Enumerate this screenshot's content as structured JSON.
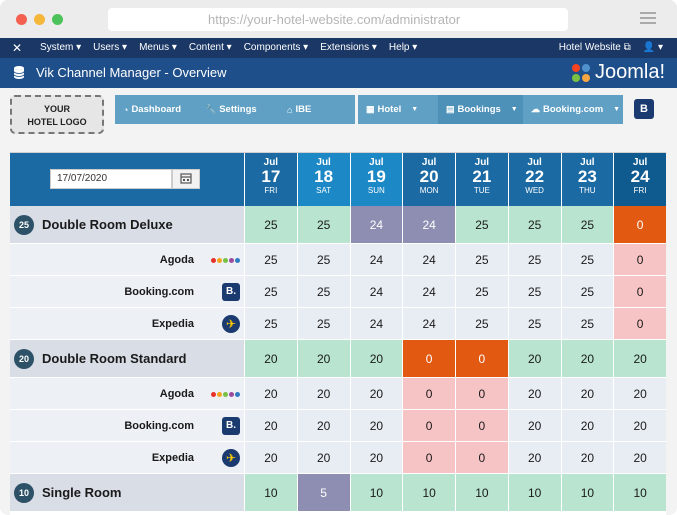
{
  "browser": {
    "url": "https://your-hotel-website.com/administrator"
  },
  "admin_bar": {
    "menu": [
      "System ▾",
      "Users ▾",
      "Menus ▾",
      "Content ▾",
      "Components ▾",
      "Extensions ▾",
      "Help ▾"
    ],
    "site_link": "Hotel Website ⧉",
    "user": "👤 ▾"
  },
  "header": {
    "title": "Vik Channel Manager - Overview",
    "brand": "Joomla!"
  },
  "toolbar": {
    "logo_text_1": "YOUR",
    "logo_text_2": "HOTEL LOGO",
    "nav_left": [
      "Dashboard",
      "Settings",
      "IBE"
    ],
    "nav_right": [
      "Hotel",
      "Bookings",
      "Booking.com"
    ],
    "b_button": "B"
  },
  "grid": {
    "date_value": "17/07/2020",
    "days": [
      {
        "m": "Jul",
        "d": "17",
        "w": "FRI"
      },
      {
        "m": "Jul",
        "d": "18",
        "w": "SAT"
      },
      {
        "m": "Jul",
        "d": "19",
        "w": "SUN"
      },
      {
        "m": "Jul",
        "d": "20",
        "w": "MON"
      },
      {
        "m": "Jul",
        "d": "21",
        "w": "TUE"
      },
      {
        "m": "Jul",
        "d": "22",
        "w": "WED"
      },
      {
        "m": "Jul",
        "d": "23",
        "w": "THU"
      },
      {
        "m": "Jul",
        "d": "24",
        "w": "FRI"
      }
    ],
    "rows": [
      {
        "type": "room",
        "num": "25",
        "name": "Double Room Deluxe",
        "values": [
          "25",
          "25",
          "24",
          "24",
          "25",
          "25",
          "25",
          "0"
        ],
        "status": [
          "green",
          "green",
          "grey",
          "grey",
          "green",
          "green",
          "green",
          "orange"
        ]
      },
      {
        "type": "channel",
        "name": "Agoda",
        "icon": "agoda",
        "values": [
          "25",
          "25",
          "24",
          "24",
          "25",
          "25",
          "25",
          "0"
        ],
        "status": [
          "plain",
          "plain",
          "plain",
          "plain",
          "plain",
          "plain",
          "plain",
          "pink"
        ]
      },
      {
        "type": "channel",
        "name": "Booking.com",
        "icon": "booking",
        "values": [
          "25",
          "25",
          "24",
          "24",
          "25",
          "25",
          "25",
          "0"
        ],
        "status": [
          "plain",
          "plain",
          "plain",
          "plain",
          "plain",
          "plain",
          "plain",
          "pink"
        ]
      },
      {
        "type": "channel",
        "name": "Expedia",
        "icon": "expedia",
        "values": [
          "25",
          "25",
          "24",
          "24",
          "25",
          "25",
          "25",
          "0"
        ],
        "status": [
          "plain",
          "plain",
          "plain",
          "plain",
          "plain",
          "plain",
          "plain",
          "pink"
        ]
      },
      {
        "type": "room",
        "num": "20",
        "name": "Double Room Standard",
        "values": [
          "20",
          "20",
          "20",
          "0",
          "0",
          "20",
          "20",
          "20"
        ],
        "status": [
          "green",
          "green",
          "green",
          "orange",
          "orange",
          "green",
          "green",
          "green"
        ]
      },
      {
        "type": "channel",
        "name": "Agoda",
        "icon": "agoda",
        "values": [
          "20",
          "20",
          "20",
          "0",
          "0",
          "20",
          "20",
          "20"
        ],
        "status": [
          "plain",
          "plain",
          "plain",
          "pink",
          "pink",
          "plain",
          "plain",
          "plain"
        ]
      },
      {
        "type": "channel",
        "name": "Booking.com",
        "icon": "booking",
        "values": [
          "20",
          "20",
          "20",
          "0",
          "0",
          "20",
          "20",
          "20"
        ],
        "status": [
          "plain",
          "plain",
          "plain",
          "pink",
          "pink",
          "plain",
          "plain",
          "plain"
        ]
      },
      {
        "type": "channel",
        "name": "Expedia",
        "icon": "expedia",
        "values": [
          "20",
          "20",
          "20",
          "0",
          "0",
          "20",
          "20",
          "20"
        ],
        "status": [
          "plain",
          "plain",
          "plain",
          "pink",
          "pink",
          "plain",
          "plain",
          "plain"
        ]
      },
      {
        "type": "room",
        "num": "10",
        "name": "Single Room",
        "values": [
          "10",
          "5",
          "10",
          "10",
          "10",
          "10",
          "10",
          "10"
        ],
        "status": [
          "green",
          "grey",
          "green",
          "green",
          "green",
          "green",
          "green",
          "green"
        ]
      }
    ]
  },
  "colors": {
    "header_blue": "#1b6aa3",
    "green": "#b9e4cf",
    "orange": "#e25a12",
    "pink": "#f7c4c6",
    "grey": "#8e8eb2"
  }
}
